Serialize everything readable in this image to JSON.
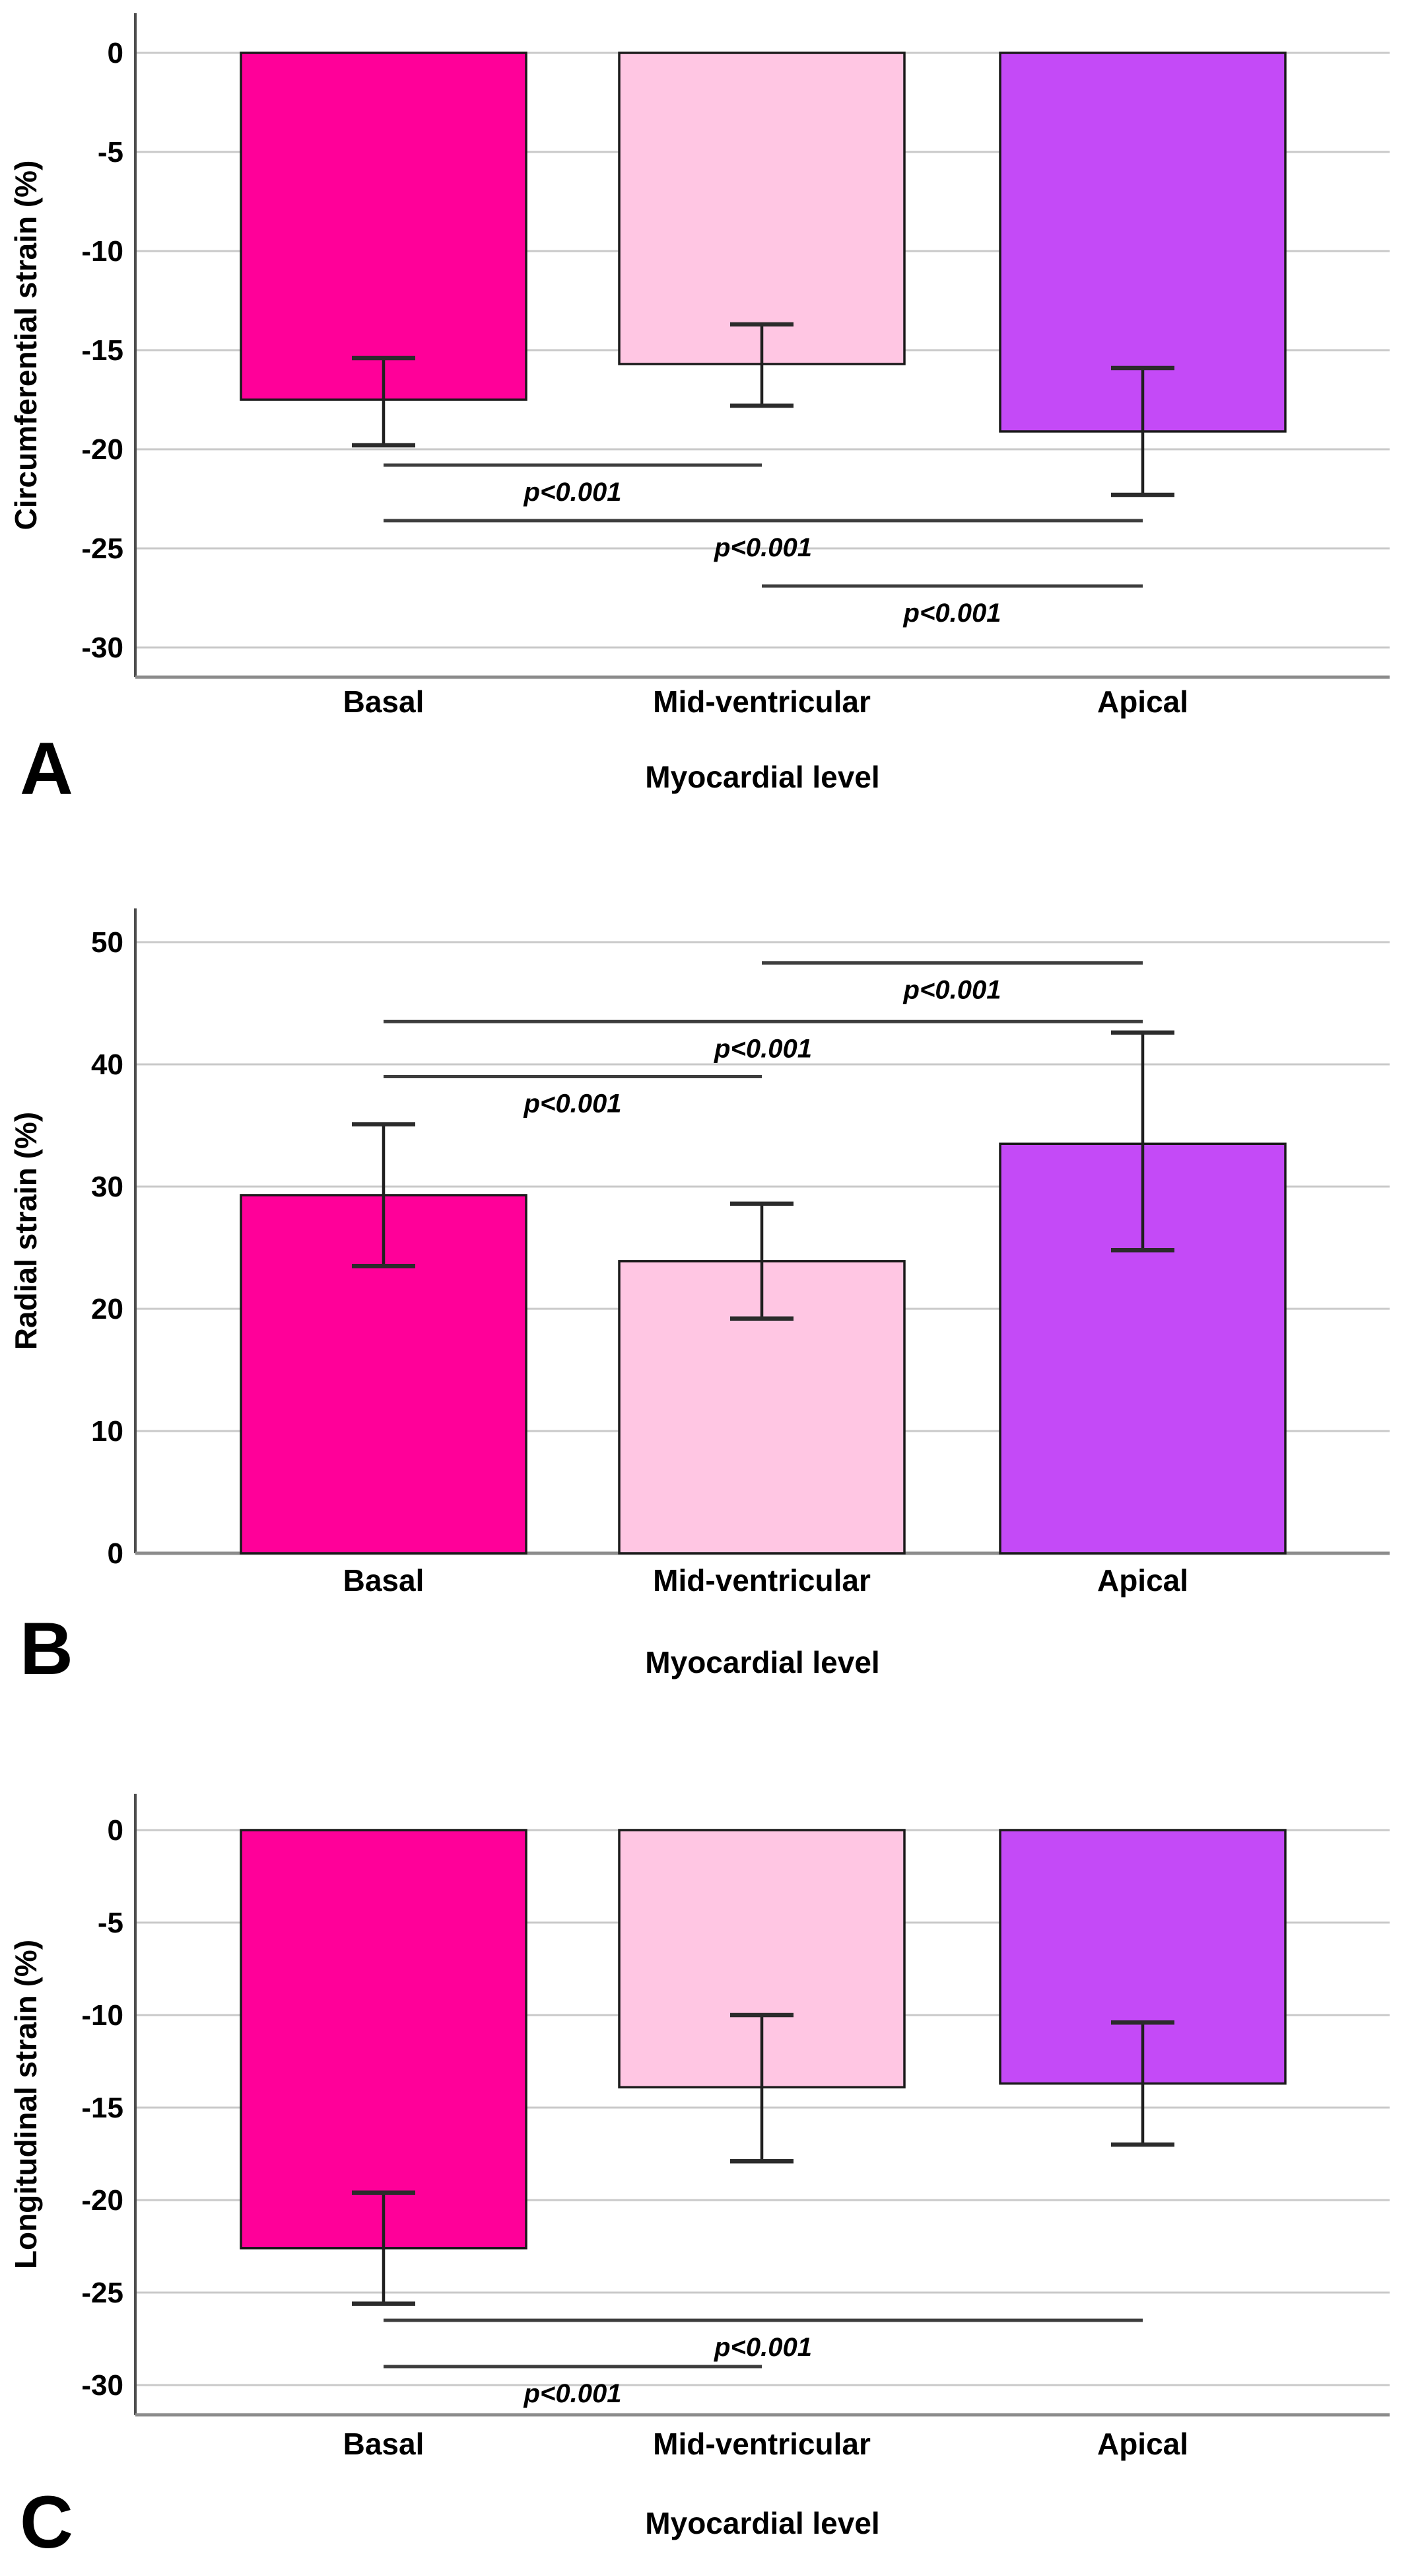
{
  "figure": {
    "background": "#ffffff",
    "panel_letters": {
      "a": "A",
      "b": "B",
      "c": "C"
    }
  },
  "colors": {
    "bar_basal": "#FF0099",
    "bar_mid": "#FFC6E3",
    "bar_apical": "#C44AF7",
    "bar_border": "#1a1a1a",
    "error_bar": "#1f1f1f",
    "error_cap": "#2b2b2b",
    "sig_line": "#3d3d3d",
    "gridline": "#c9c9c9",
    "y_axis": "#4d4d4d",
    "x_axis": "#8c8c8c",
    "text": "#000000"
  },
  "chart_data": [
    {
      "type": "bar",
      "panel": "A",
      "ylabel": "Circumferential strain (%)",
      "xlabel": "Myocardial level",
      "categories": [
        "Basal",
        "Mid-ventricular",
        "Apical"
      ],
      "values": [
        -17.5,
        -15.7,
        -19.1
      ],
      "error_high": [
        -15.4,
        -13.7,
        -15.9
      ],
      "error_low": [
        -19.8,
        -17.8,
        -22.3
      ],
      "bar_colors": [
        "#FF0099",
        "#FFC6E3",
        "#C44AF7"
      ],
      "ylim": [
        -31.5,
        2
      ],
      "yticks": [
        0,
        -5,
        -10,
        -15,
        -20,
        -25,
        -30
      ],
      "grid": true,
      "legend": "none",
      "significance": [
        {
          "from": 0,
          "to": 1,
          "y": -20.8,
          "label": "p<0.001"
        },
        {
          "from": 0,
          "to": 2,
          "y": -23.6,
          "label": "p<0.001"
        },
        {
          "from": 1,
          "to": 2,
          "y": -26.9,
          "label": "p<0.001"
        }
      ]
    },
    {
      "type": "bar",
      "panel": "B",
      "ylabel": "Radial strain (%)",
      "xlabel": "Myocardial level",
      "categories": [
        "Basal",
        "Mid-ventricular",
        "Apical"
      ],
      "values": [
        29.3,
        23.9,
        33.5
      ],
      "error_high": [
        35.1,
        28.6,
        42.6
      ],
      "error_low": [
        23.5,
        19.2,
        24.8
      ],
      "bar_colors": [
        "#FF0099",
        "#FFC6E3",
        "#C44AF7"
      ],
      "ylim": [
        0,
        55.5
      ],
      "yticks": [
        0,
        10,
        20,
        30,
        40,
        50
      ],
      "grid": true,
      "legend": "none",
      "significance": [
        {
          "from": 1,
          "to": 2,
          "y": 48.3,
          "label": "p<0.001"
        },
        {
          "from": 0,
          "to": 2,
          "y": 43.5,
          "label": "p<0.001"
        },
        {
          "from": 0,
          "to": 1,
          "y": 39.0,
          "label": "p<0.001"
        }
      ]
    },
    {
      "type": "bar",
      "panel": "C",
      "ylabel": "Longitudinal strain (%)",
      "xlabel": "Myocardial level",
      "categories": [
        "Basal",
        "Mid-ventricular",
        "Apical"
      ],
      "values": [
        -22.6,
        -13.9,
        -13.7
      ],
      "error_high": [
        -19.6,
        -10.0,
        -10.4
      ],
      "error_low": [
        -25.6,
        -17.9,
        -17.0
      ],
      "bar_colors": [
        "#FF0099",
        "#FFC6E3",
        "#C44AF7"
      ],
      "ylim": [
        -31.8,
        2.4
      ],
      "yticks": [
        0,
        -5,
        -10,
        -15,
        -20,
        -25,
        -30
      ],
      "grid": true,
      "legend": "none",
      "significance": [
        {
          "from": 0,
          "to": 2,
          "y": -26.5,
          "label": "p<0.001"
        },
        {
          "from": 0,
          "to": 1,
          "y": -29.0,
          "label": "p<0.001"
        }
      ]
    }
  ]
}
